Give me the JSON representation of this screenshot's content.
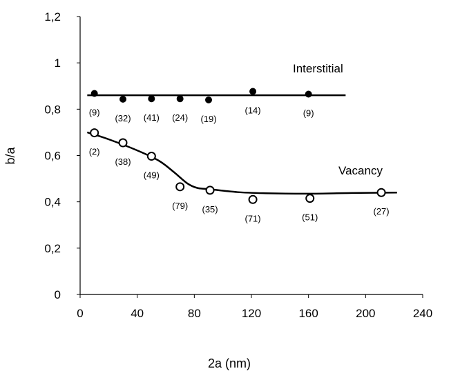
{
  "chart_data": {
    "type": "scatter",
    "xlabel": "2a (nm)",
    "ylabel": "b/a",
    "xlim": [
      0,
      240
    ],
    "ylim": [
      0,
      1.2
    ],
    "xticks": [
      "0",
      "40",
      "80",
      "120",
      "160",
      "200",
      "240"
    ],
    "yticks": [
      "0",
      "0,2",
      "0,4",
      "0,6",
      "0,8",
      "1",
      "1,2"
    ],
    "grid": false,
    "series": [
      {
        "name": "Interstitial",
        "marker": "filled-circle",
        "x": [
          10,
          30,
          50,
          70,
          90,
          121,
          160
        ],
        "y": [
          0.868,
          0.843,
          0.845,
          0.845,
          0.84,
          0.877,
          0.865
        ],
        "counts": [
          "(9)",
          "(32)",
          "(41)",
          "(24)",
          "(19)",
          "(14)",
          "(9)"
        ],
        "fit": {
          "x": [
            5,
            186
          ],
          "y": [
            0.86,
            0.86
          ]
        }
      },
      {
        "name": "Vacancy",
        "marker": "open-circle",
        "x": [
          10,
          30,
          50,
          70,
          91,
          121,
          161,
          211
        ],
        "y": [
          0.698,
          0.655,
          0.597,
          0.465,
          0.45,
          0.41,
          0.415,
          0.44
        ],
        "counts": [
          "(2)",
          "(38)",
          "(49)",
          "(79)",
          "(35)",
          "(71)",
          "(51)",
          "(27)"
        ],
        "fit": {
          "x": [
            5,
            20,
            40,
            55,
            65,
            75,
            82,
            90,
            110,
            130,
            160,
            190,
            222
          ],
          "y": [
            0.7,
            0.67,
            0.622,
            0.578,
            0.532,
            0.48,
            0.46,
            0.455,
            0.442,
            0.437,
            0.435,
            0.438,
            0.44
          ]
        }
      }
    ]
  },
  "colors": {
    "ink": "#000000",
    "background": "#ffffff"
  }
}
